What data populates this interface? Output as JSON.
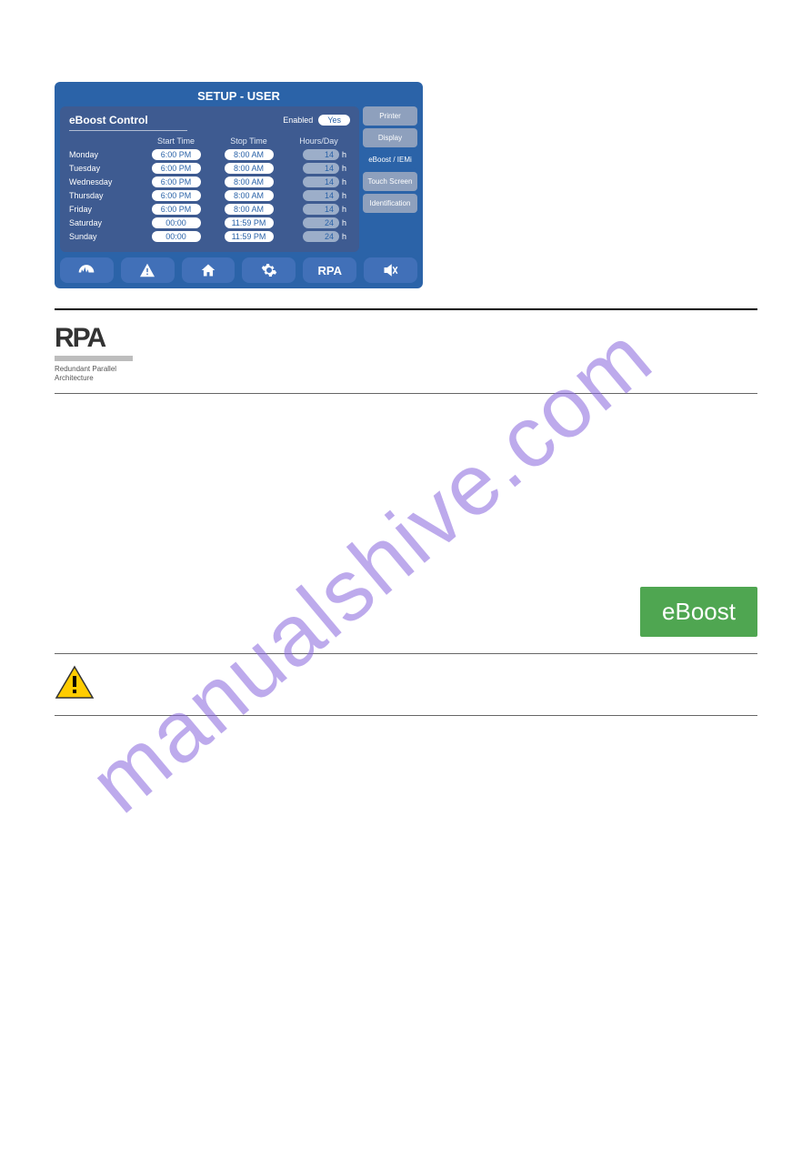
{
  "panel": {
    "title": "SETUP - USER",
    "section": "eBoost Control",
    "enabled_label": "Enabled",
    "enabled_value": "Yes",
    "columns": {
      "start": "Start Time",
      "stop": "Stop Time",
      "hours": "Hours/Day"
    },
    "rows": [
      {
        "day": "Monday",
        "start": "6:00 PM",
        "stop": "8:00 AM",
        "hours": "14"
      },
      {
        "day": "Tuesday",
        "start": "6:00 PM",
        "stop": "8:00 AM",
        "hours": "14"
      },
      {
        "day": "Wednesday",
        "start": "6:00 PM",
        "stop": "8:00 AM",
        "hours": "14"
      },
      {
        "day": "Thursday",
        "start": "6:00 PM",
        "stop": "8:00 AM",
        "hours": "14"
      },
      {
        "day": "Friday",
        "start": "6:00 PM",
        "stop": "8:00 AM",
        "hours": "14"
      },
      {
        "day": "Saturday",
        "start": "00:00",
        "stop": "11:59 PM",
        "hours": "24"
      },
      {
        "day": "Sunday",
        "start": "00:00",
        "stop": "11:59 PM",
        "hours": "24"
      }
    ],
    "hours_unit": "h",
    "tabs": [
      {
        "label": "Printer",
        "active": false
      },
      {
        "label": "Display",
        "active": false
      },
      {
        "label": "eBoost / IEMi",
        "active": true
      },
      {
        "label": "Touch Screen",
        "active": false
      },
      {
        "label": "Identification",
        "active": false
      }
    ],
    "bottom": {
      "rpa": "RPA"
    }
  },
  "rpa_block": {
    "logo": "RPA",
    "sub1": "Redundant Parallel",
    "sub2": "Architecture"
  },
  "eboost_button": "eBoost",
  "colors": {
    "panel_bg": "#2b63a8",
    "content_bg": "#3e5b91",
    "pill_bg": "#ffffff",
    "hours_pill_bg": "#9caec9",
    "tab_inactive": "#8ea0bd",
    "eboost_green": "#4fa651"
  }
}
